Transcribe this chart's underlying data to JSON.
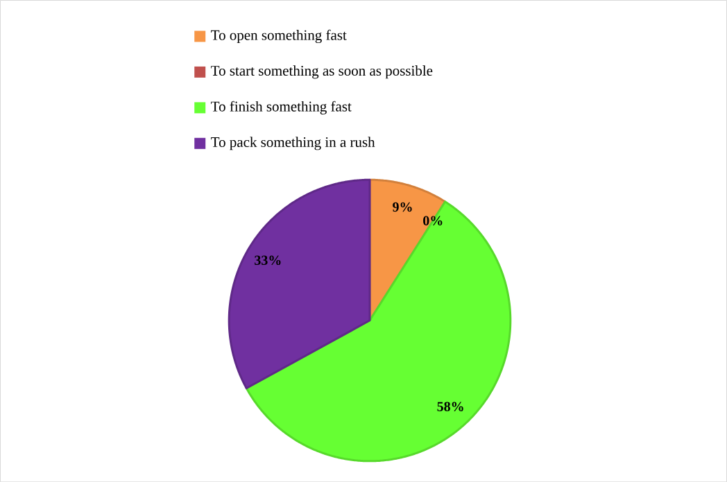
{
  "chart_data": {
    "type": "pie",
    "categories": [
      "To open something fast",
      "To start something as soon as possible",
      "To finish something fast",
      "To pack something in a rush"
    ],
    "values": [
      9,
      0,
      58,
      33
    ],
    "colors": [
      "#f79646",
      "#c0504d",
      "#66ff33",
      "#7030a0"
    ],
    "value_labels": [
      "9%",
      "0%",
      "58%",
      "33%"
    ],
    "legend": "top"
  }
}
